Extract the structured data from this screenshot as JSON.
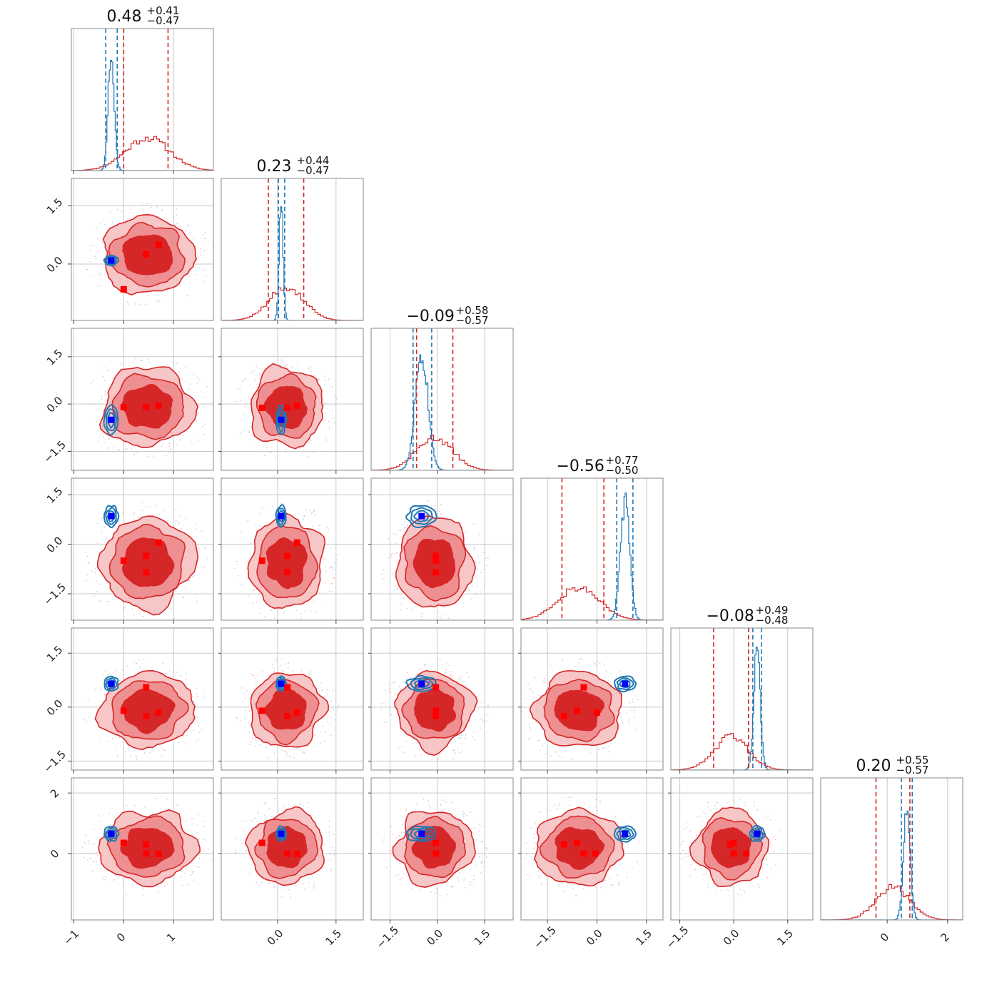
{
  "chart_data": {
    "type": "corner",
    "params": 6,
    "colors": {
      "red": "#d62728",
      "blue": "#1f77b4",
      "red_marker": "#ff0000",
      "blue_marker": "#0000ff"
    },
    "grid": true,
    "titles": [
      {
        "value": "0.48",
        "plus": "+0.41",
        "minus": "−0.47"
      },
      {
        "value": "0.23",
        "plus": "+0.44",
        "minus": "−0.47"
      },
      {
        "value": "−0.09",
        "plus": "+0.58",
        "minus": "−0.57"
      },
      {
        "value": "−0.56",
        "plus": "+0.77",
        "minus": "−0.50"
      },
      {
        "value": "−0.08",
        "plus": "+0.49",
        "minus": "−0.48"
      },
      {
        "value": "0.20",
        "plus": "+0.55",
        "minus": "−0.57"
      }
    ],
    "axis_ranges": [
      [
        -1.05,
        1.8
      ],
      [
        -1.45,
        2.2
      ],
      [
        -2.1,
        2.4
      ],
      [
        -2.3,
        2.0
      ],
      [
        -1.75,
        2.2
      ],
      [
        -2.2,
        2.5
      ]
    ],
    "x_ticks": [
      {
        "values": [
          -1,
          0,
          1
        ],
        "labels": [
          "−1",
          "0",
          "1"
        ]
      },
      {
        "values": [
          0.0,
          1.5
        ],
        "labels": [
          "0.0",
          "1.5"
        ]
      },
      {
        "values": [
          -1.5,
          0.0,
          1.5
        ],
        "labels": [
          "−1.5",
          "0.0",
          "1.5"
        ]
      },
      {
        "values": [
          -1.5,
          0.0,
          1.5
        ],
        "labels": [
          "−1.5",
          "0.0",
          "1.5"
        ]
      },
      {
        "values": [
          -1.5,
          0.0,
          1.5
        ],
        "labels": [
          "−1.5",
          "0.0",
          "1.5"
        ]
      },
      {
        "values": [
          0,
          2
        ],
        "labels": [
          "0",
          "2"
        ]
      }
    ],
    "y_ticks": [
      null,
      {
        "values": [
          0.0,
          1.5
        ],
        "labels": [
          "0.0",
          "1.5"
        ]
      },
      {
        "values": [
          -1.5,
          0.0,
          1.5
        ],
        "labels": [
          "−1.5",
          "0.0",
          "1.5"
        ]
      },
      {
        "values": [
          -1.5,
          0.0,
          1.5
        ],
        "labels": [
          "−1.5",
          "0.0",
          "1.5"
        ]
      },
      {
        "values": [
          -1.5,
          0.0,
          1.5
        ],
        "labels": [
          "−1.5",
          "0.0",
          "1.5"
        ]
      },
      {
        "values": [
          0,
          2
        ],
        "labels": [
          "0",
          "2"
        ]
      }
    ],
    "red_posterior": {
      "centers": [
        0.48,
        0.23,
        -0.09,
        -0.56,
        -0.08,
        0.2
      ],
      "sigmas": [
        0.44,
        0.45,
        0.57,
        0.63,
        0.48,
        0.56
      ],
      "dashed_lines": [
        [
          0.0,
          0.89
        ],
        [
          -0.24,
          0.67
        ],
        [
          -0.66,
          0.49
        ],
        [
          -1.06,
          0.21
        ],
        [
          -0.56,
          0.41
        ],
        [
          -0.37,
          0.75
        ]
      ],
      "markers": [
        {
          "i": 1,
          "j": 0,
          "points": [
            [
              0.0,
              -0.65
            ],
            [
              0.45,
              0.25
            ],
            [
              0.7,
              0.5
            ]
          ]
        },
        {
          "i": 2,
          "j": 0,
          "points": [
            [
              0.0,
              -0.1
            ],
            [
              0.45,
              -0.1
            ],
            [
              0.7,
              -0.05
            ]
          ]
        },
        {
          "i": 2,
          "j": 1,
          "points": [
            [
              -0.4,
              -0.12
            ],
            [
              0.25,
              -0.12
            ],
            [
              0.5,
              -0.05
            ]
          ]
        },
        {
          "i": 3,
          "j": 0,
          "points": [
            [
              0.0,
              -0.5
            ],
            [
              0.45,
              -0.35
            ],
            [
              0.45,
              -0.85
            ],
            [
              0.7,
              0.05
            ]
          ]
        },
        {
          "i": 3,
          "j": 1,
          "points": [
            [
              -0.4,
              -0.5
            ],
            [
              0.25,
              -0.35
            ],
            [
              0.25,
              -0.85
            ],
            [
              0.5,
              0.05
            ]
          ]
        },
        {
          "i": 3,
          "j": 2,
          "points": [
            [
              -0.05,
              -0.35
            ],
            [
              -0.05,
              -0.5
            ],
            [
              -0.05,
              -0.85
            ]
          ]
        },
        {
          "i": 4,
          "j": 0,
          "points": [
            [
              0.0,
              -0.1
            ],
            [
              0.45,
              0.55
            ],
            [
              0.45,
              -0.25
            ],
            [
              0.7,
              -0.15
            ]
          ]
        },
        {
          "i": 4,
          "j": 1,
          "points": [
            [
              -0.4,
              -0.1
            ],
            [
              0.25,
              0.55
            ],
            [
              0.25,
              -0.25
            ],
            [
              0.5,
              -0.15
            ]
          ]
        },
        {
          "i": 4,
          "j": 2,
          "points": [
            [
              -0.05,
              0.55
            ],
            [
              -0.05,
              -0.1
            ],
            [
              -0.05,
              -0.25
            ]
          ]
        },
        {
          "i": 4,
          "j": 3,
          "points": [
            [
              -1.0,
              -0.25
            ],
            [
              -0.6,
              -0.1
            ],
            [
              -0.4,
              0.55
            ],
            [
              0.0,
              -0.15
            ]
          ]
        },
        {
          "i": 5,
          "j": 0,
          "points": [
            [
              0.0,
              0.35
            ],
            [
              0.45,
              0.3
            ],
            [
              0.45,
              0.0
            ],
            [
              0.7,
              -0.02
            ]
          ]
        },
        {
          "i": 5,
          "j": 1,
          "points": [
            [
              -0.4,
              0.35
            ],
            [
              0.25,
              0.0
            ],
            [
              0.5,
              -0.02
            ]
          ]
        },
        {
          "i": 5,
          "j": 2,
          "points": [
            [
              -0.05,
              0.0
            ],
            [
              -0.05,
              0.35
            ]
          ]
        },
        {
          "i": 5,
          "j": 3,
          "points": [
            [
              -1.0,
              0.3
            ],
            [
              -0.6,
              0.35
            ],
            [
              -0.4,
              0.0
            ],
            [
              -0.05,
              0.0
            ]
          ]
        },
        {
          "i": 5,
          "j": 4,
          "points": [
            [
              -0.1,
              0.3
            ],
            [
              0.0,
              0.35
            ],
            [
              0.0,
              0.0
            ],
            [
              0.35,
              0.0
            ]
          ]
        }
      ]
    },
    "blue_posterior": {
      "centers": [
        -0.25,
        0.09,
        -0.5,
        0.85,
        0.65,
        0.65
      ],
      "sigmas": [
        0.06,
        0.05,
        0.2,
        0.14,
        0.09,
        0.11
      ],
      "dashed_lines": [
        [
          -0.36,
          -0.13
        ],
        [
          0.02,
          0.18
        ],
        [
          -0.77,
          -0.18
        ],
        [
          0.6,
          1.09
        ],
        [
          0.53,
          0.77
        ],
        [
          0.47,
          0.83
        ]
      ]
    }
  }
}
